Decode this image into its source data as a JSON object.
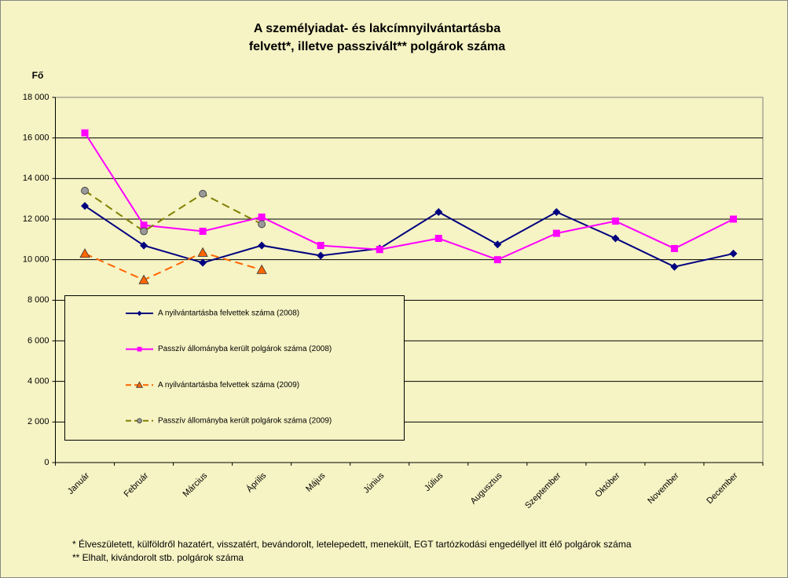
{
  "chart_data": {
    "type": "line",
    "title": [
      "A személyiadat- és lakcímnyilvántartásba",
      "felvett*, illetve passzivált** polgárok száma"
    ],
    "ylabel": "Fő",
    "categories": [
      "Január",
      "Február",
      "Március",
      "Április",
      "Május",
      "Június",
      "Július",
      "Augusztus",
      "Szeptember",
      "Október",
      "November",
      "December"
    ],
    "series": [
      {
        "name": "A nyilvántartásba felvettek száma (2008)",
        "color": "#000080",
        "marker": "diamond",
        "dashed": false,
        "values": [
          12650,
          10700,
          9850,
          10700,
          10200,
          10550,
          12350,
          10750,
          12350,
          11050,
          9650,
          10300
        ]
      },
      {
        "name": "Passzív állományba került polgárok száma (2008)",
        "color": "#ff00ff",
        "marker": "square",
        "dashed": false,
        "values": [
          16250,
          11700,
          11400,
          12100,
          10700,
          10500,
          11050,
          10000,
          11300,
          11900,
          10550,
          12000
        ]
      },
      {
        "name": "A nyilvántartásba felvettek száma (2009)",
        "color": "#ff6600",
        "marker": "triangle",
        "dashed": true,
        "values": [
          10300,
          9000,
          10350,
          9500,
          null,
          null,
          null,
          null,
          null,
          null,
          null,
          null
        ]
      },
      {
        "name": "Passzív állományba került polgárok száma (2009)",
        "color": "#808000",
        "marker": "circle",
        "dashed": true,
        "values": [
          13400,
          11400,
          13250,
          11750,
          null,
          null,
          null,
          null,
          null,
          null,
          null,
          null
        ]
      }
    ],
    "ylim": [
      0,
      18000
    ],
    "yticks": [
      0,
      {
        "value": 2000,
        "label": "2 000"
      },
      {
        "value": 4000,
        "label": "4 000"
      },
      {
        "value": 6000,
        "label": "6 000"
      },
      {
        "value": 8000,
        "label": "8 000"
      },
      {
        "value": 10000,
        "label": "10 000"
      },
      {
        "value": 12000,
        "label": "12 000"
      },
      {
        "value": 14000,
        "label": "14 000"
      },
      {
        "value": 16000,
        "label": "16 000"
      },
      {
        "value": 18000,
        "label": "18 000"
      }
    ],
    "grid": true,
    "footnotes": [
      "* Élveszületett, külföldről hazatért, visszatért, bevándorolt, letelepedett, menekült, EGT tartózkodási engedéllyel itt élő  polgárok száma",
      "** Elhalt, kivándorolt stb. polgárok száma"
    ]
  }
}
